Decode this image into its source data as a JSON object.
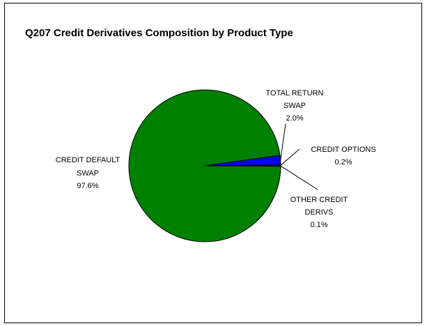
{
  "chart_data": {
    "type": "pie",
    "title": "Q207 Credit Derivatives Composition by Product Type",
    "colors": {
      "credit_default_swap": "#008000",
      "total_return_swap": "#0000ff",
      "credit_options": "#ffffff",
      "other_credit_derivs": "#000000",
      "outline": "#000000"
    },
    "slices": [
      {
        "key": "credit_default_swap",
        "label_lines": [
          "CREDIT DEFAULT",
          "SWAP"
        ],
        "percent_label": "97.6%",
        "value": 97.6
      },
      {
        "key": "total_return_swap",
        "label_lines": [
          "TOTAL RETURN",
          "SWAP"
        ],
        "percent_label": "2.0%",
        "value": 2.0
      },
      {
        "key": "credit_options",
        "label_lines": [
          "CREDIT OPTIONS"
        ],
        "percent_label": "0.2%",
        "value": 0.2
      },
      {
        "key": "other_credit_derivs",
        "label_lines": [
          "OTHER CREDIT",
          "DERIVS"
        ],
        "percent_label": "0.1%",
        "value": 0.1
      }
    ]
  }
}
